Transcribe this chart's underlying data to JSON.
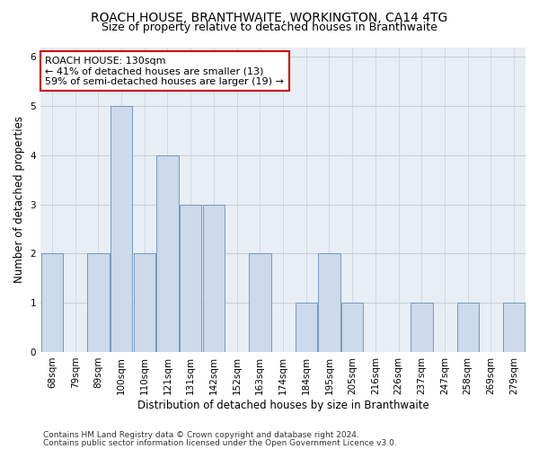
{
  "title1": "ROACH HOUSE, BRANTHWAITE, WORKINGTON, CA14 4TG",
  "title2": "Size of property relative to detached houses in Branthwaite",
  "xlabel": "Distribution of detached houses by size in Branthwaite",
  "ylabel": "Number of detached properties",
  "categories": [
    "68sqm",
    "79sqm",
    "89sqm",
    "100sqm",
    "110sqm",
    "121sqm",
    "131sqm",
    "142sqm",
    "152sqm",
    "163sqm",
    "174sqm",
    "184sqm",
    "195sqm",
    "205sqm",
    "216sqm",
    "226sqm",
    "237sqm",
    "247sqm",
    "258sqm",
    "269sqm",
    "279sqm"
  ],
  "values": [
    2,
    0,
    2,
    5,
    2,
    4,
    3,
    3,
    0,
    2,
    0,
    1,
    2,
    1,
    0,
    0,
    1,
    0,
    1,
    0,
    1
  ],
  "bar_color": "#ccdaeb",
  "bar_edge_color": "#7799bb",
  "annotation_text": "ROACH HOUSE: 130sqm\n← 41% of detached houses are smaller (13)\n59% of semi-detached houses are larger (19) →",
  "annotation_box_color": "#ffffff",
  "annotation_edge_color": "#cc0000",
  "ylim": [
    0,
    6.2
  ],
  "yticks": [
    0,
    1,
    2,
    3,
    4,
    5,
    6
  ],
  "footer1": "Contains HM Land Registry data © Crown copyright and database right 2024.",
  "footer2": "Contains public sector information licensed under the Open Government Licence v3.0.",
  "bg_color": "#ffffff",
  "plot_bg_color": "#e8eef5",
  "grid_color": "#c8d0da",
  "title_fontsize": 10,
  "subtitle_fontsize": 9,
  "axis_label_fontsize": 8.5,
  "tick_fontsize": 7.5,
  "annotation_fontsize": 8,
  "footer_fontsize": 6.5
}
